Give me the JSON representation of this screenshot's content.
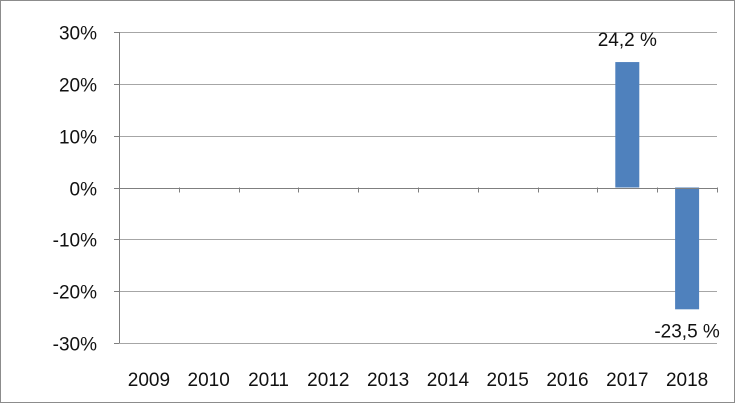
{
  "chart_data": {
    "type": "bar",
    "title": "",
    "xlabel": "",
    "ylabel": "",
    "categories": [
      "2009",
      "2010",
      "2011",
      "2012",
      "2013",
      "2014",
      "2015",
      "2016",
      "2017",
      "2018"
    ],
    "values": [
      null,
      null,
      null,
      null,
      null,
      null,
      null,
      null,
      24.2,
      -23.5
    ],
    "data_labels": [
      "",
      "",
      "",
      "",
      "",
      "",
      "",
      "",
      "24,2 %",
      "-23,5 %"
    ],
    "ylim": [
      -30,
      30
    ],
    "yticks": [
      30,
      20,
      10,
      0,
      -10,
      -20,
      -30
    ],
    "ytick_labels": [
      "30%",
      "20%",
      "10%",
      "0%",
      "-10%",
      "-20%",
      "-30%"
    ],
    "grid": true,
    "legend": "none",
    "colors": {
      "bar": "#4f81bd",
      "grid": "#a6a6a6",
      "axis": "#7f7f7f",
      "text": "#111111",
      "frame": "#8c8c8c"
    }
  }
}
